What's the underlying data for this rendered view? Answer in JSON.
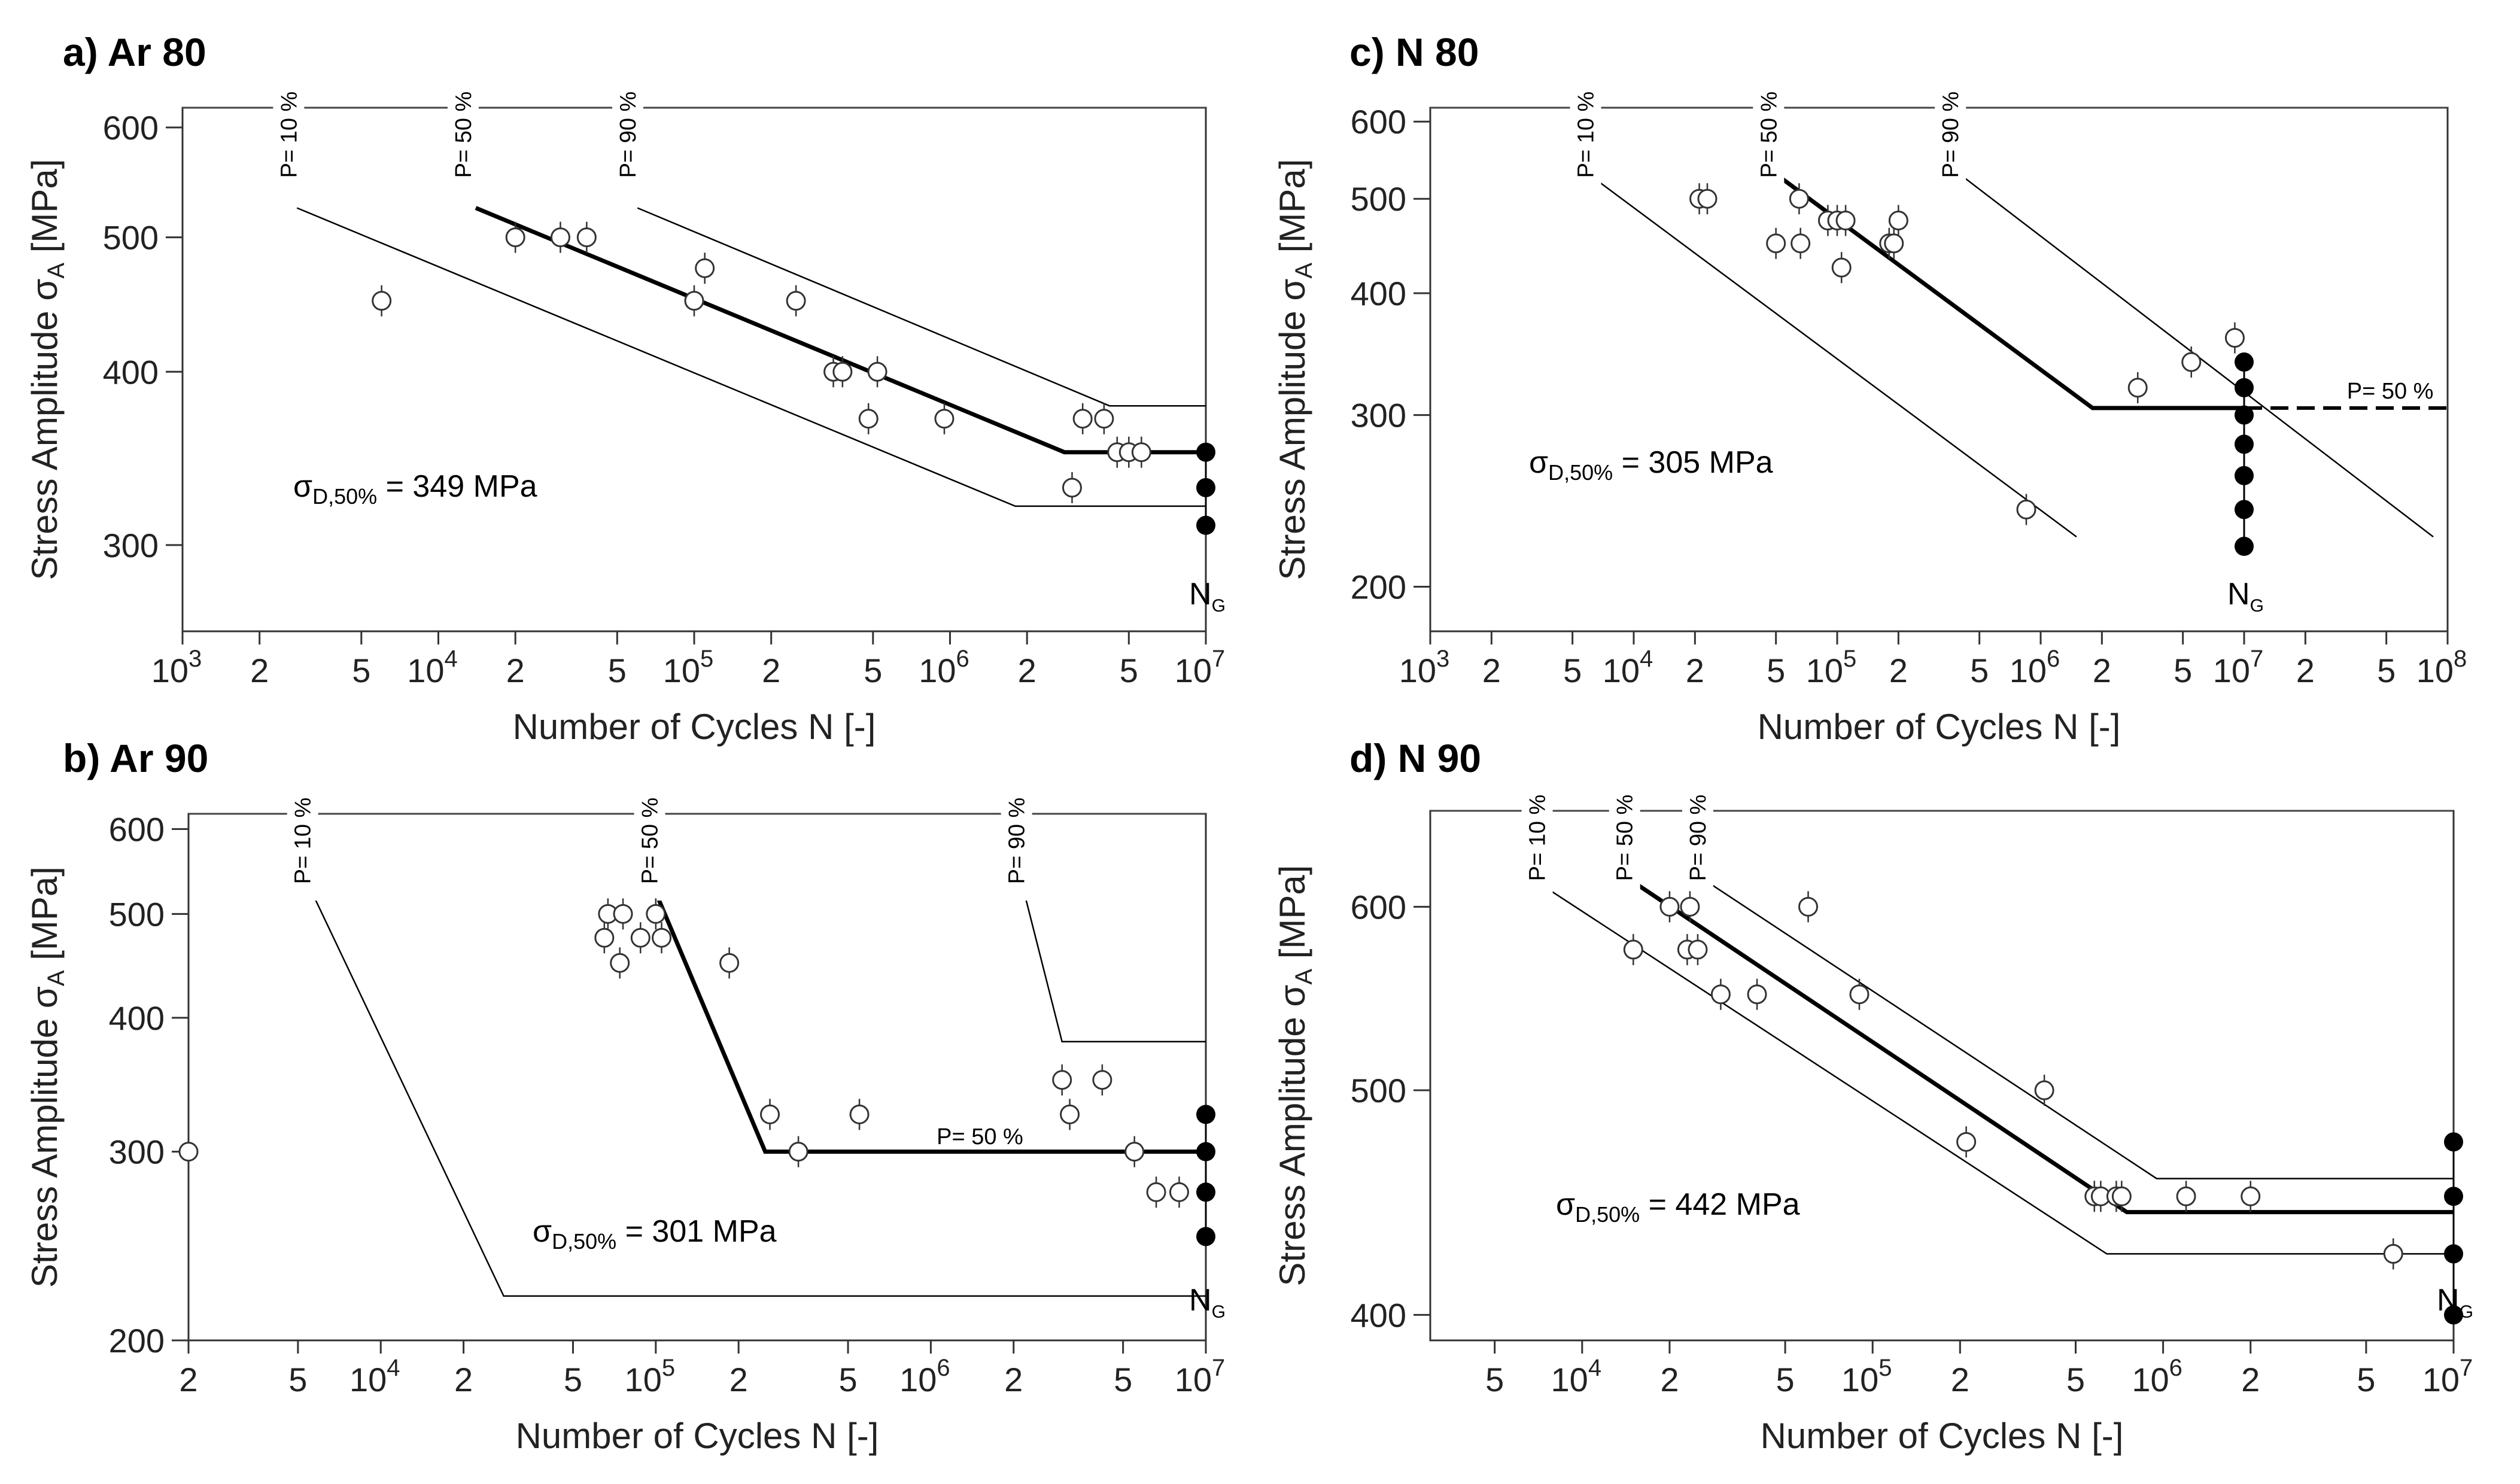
{
  "chart_data": [
    {
      "id": "a",
      "type": "scatter",
      "title": "a) Ar 80",
      "xlabel": "Number of Cycles N [-]",
      "ylabel_main": "Stress Amplitude σ",
      "ylabel_sub": "A",
      "ylabel_unit": " [MPa]",
      "xscale": "log",
      "yscale": "log",
      "xlim": [
        1000,
        10000000
      ],
      "ylim": [
        260,
        620
      ],
      "xticks": [
        {
          "v": 1000,
          "base": "10",
          "exp": "3"
        },
        {
          "v": 2000,
          "base": "2"
        },
        {
          "v": 5000,
          "base": "5"
        },
        {
          "v": 10000,
          "base": "10",
          "exp": "4"
        },
        {
          "v": 20000,
          "base": "2"
        },
        {
          "v": 50000,
          "base": "5"
        },
        {
          "v": 100000,
          "base": "10",
          "exp": "5"
        },
        {
          "v": 200000,
          "base": "2"
        },
        {
          "v": 500000,
          "base": "5"
        },
        {
          "v": 1000000,
          "base": "10",
          "exp": "6"
        },
        {
          "v": 2000000,
          "base": "2"
        },
        {
          "v": 5000000,
          "base": "5"
        },
        {
          "v": 10000000,
          "base": "10",
          "exp": "7"
        }
      ],
      "yticks": [
        {
          "v": 300,
          "t": "300"
        },
        {
          "v": 400,
          "t": "400"
        },
        {
          "v": 500,
          "t": "500"
        },
        {
          "v": 600,
          "t": "600"
        }
      ],
      "top_line_value": 620,
      "open_points": [
        [
          6000,
          450
        ],
        [
          20000,
          500
        ],
        [
          30000,
          500
        ],
        [
          38000,
          500
        ],
        [
          100000,
          450
        ],
        [
          110000,
          475
        ],
        [
          250000,
          450
        ],
        [
          350000,
          400
        ],
        [
          380000,
          400
        ],
        [
          480000,
          370
        ],
        [
          520000,
          400
        ],
        [
          950000,
          370
        ],
        [
          3000000,
          330
        ],
        [
          3300000,
          370
        ],
        [
          4000000,
          370
        ],
        [
          4500000,
          350
        ],
        [
          5000000,
          350
        ],
        [
          5600000,
          350
        ]
      ],
      "runouts": [
        [
          10000000,
          350
        ],
        [
          10000000,
          330
        ],
        [
          10000000,
          310
        ]
      ],
      "lines": [
        {
          "name": "P=10%",
          "style": "thin",
          "points": [
            [
              2800,
              525
            ],
            [
              1800000,
              320
            ],
            [
              10000000,
              320
            ]
          ]
        },
        {
          "name": "P=50%",
          "style": "bold",
          "points": [
            [
              14000,
              525
            ],
            [
              2800000,
              350
            ],
            [
              10000000,
              350
            ]
          ]
        },
        {
          "name": "P=90%",
          "style": "thin",
          "points": [
            [
              60000,
              525
            ],
            [
              4200000,
              378
            ],
            [
              10000000,
              378
            ]
          ]
        }
      ],
      "prob_labels": [
        {
          "text": "P= 10 %",
          "x": 2600
        },
        {
          "text": "P= 50 %",
          "x": 12500
        },
        {
          "text": "P= 90 %",
          "x": 55000
        }
      ],
      "endurance": {
        "prefix": "σ",
        "sub": "D,50%",
        "value": " = 349 MPa"
      },
      "ng_label": {
        "base": "N",
        "sub": "G"
      }
    },
    {
      "id": "b",
      "type": "scatter",
      "title": "b) Ar 90",
      "xlabel": "Number of Cycles N [-]",
      "ylabel_main": "Stress Amplitude σ",
      "ylabel_sub": "A",
      "ylabel_unit": " [MPa]",
      "xscale": "log",
      "yscale": "log",
      "xlim": [
        2000,
        10000000
      ],
      "ylim": [
        200,
        620
      ],
      "xticks": [
        {
          "v": 2000,
          "base": "2"
        },
        {
          "v": 5000,
          "base": "5"
        },
        {
          "v": 10000,
          "base": "10",
          "exp": "4"
        },
        {
          "v": 20000,
          "base": "2"
        },
        {
          "v": 50000,
          "base": "5"
        },
        {
          "v": 100000,
          "base": "10",
          "exp": "5"
        },
        {
          "v": 200000,
          "base": "2"
        },
        {
          "v": 500000,
          "base": "5"
        },
        {
          "v": 1000000,
          "base": "10",
          "exp": "6"
        },
        {
          "v": 2000000,
          "base": "2"
        },
        {
          "v": 5000000,
          "base": "5"
        },
        {
          "v": 10000000,
          "base": "10",
          "exp": "7"
        }
      ],
      "yticks": [
        {
          "v": 200,
          "t": "200"
        },
        {
          "v": 300,
          "t": "300"
        },
        {
          "v": 400,
          "t": "400"
        },
        {
          "v": 500,
          "t": "500"
        },
        {
          "v": 600,
          "t": "600"
        }
      ],
      "top_line_value": 620,
      "open_points": [
        [
          2000,
          300
        ],
        [
          65000,
          475
        ],
        [
          67000,
          500
        ],
        [
          74000,
          450
        ],
        [
          76000,
          500
        ],
        [
          88000,
          475
        ],
        [
          100000,
          500
        ],
        [
          105000,
          475
        ],
        [
          185000,
          450
        ],
        [
          260000,
          325
        ],
        [
          330000,
          300
        ],
        [
          550000,
          325
        ],
        [
          3000000,
          350
        ],
        [
          3200000,
          325
        ],
        [
          4200000,
          350
        ],
        [
          5500000,
          300
        ],
        [
          6600000,
          275
        ],
        [
          8000000,
          275
        ]
      ],
      "runouts": [
        [
          10000000,
          325
        ],
        [
          10000000,
          300
        ],
        [
          10000000,
          275
        ],
        [
          10000000,
          250
        ]
      ],
      "lines": [
        {
          "name": "P=10%",
          "style": "thin",
          "points": [
            [
              5500,
              530
            ],
            [
              28000,
              220
            ],
            [
              10000000,
              220
            ]
          ]
        },
        {
          "name": "P=50%",
          "style": "bold",
          "points": [
            [
              98000,
              530
            ],
            [
              250000,
              300
            ],
            [
              10000000,
              300
            ]
          ]
        },
        {
          "name": "P=90%",
          "style": "thin",
          "points": [
            [
              2200000,
              520
            ],
            [
              3000000,
              380
            ],
            [
              10000000,
              380
            ]
          ]
        }
      ],
      "prob_labels": [
        {
          "text": "P= 10 %",
          "x": 5200
        },
        {
          "text": "P= 50 %",
          "x": 95000
        },
        {
          "text": "P= 90 %",
          "x": 2050000
        }
      ],
      "inline_label": {
        "text": "P= 50 %",
        "x": 1050000,
        "y": 305
      },
      "endurance": {
        "prefix": "σ",
        "sub": "D,50%",
        "value": " = 301 MPa"
      },
      "ng_label": {
        "base": "N",
        "sub": "G"
      }
    },
    {
      "id": "c",
      "type": "scatter",
      "title": "c) N 80",
      "xlabel": "Number of Cycles N [-]",
      "ylabel_main": "Stress Amplitude σ",
      "ylabel_sub": "A",
      "ylabel_unit": " [MPa]",
      "xscale": "log",
      "yscale": "log",
      "xlim": [
        1000,
        100000000
      ],
      "ylim": [
        180,
        620
      ],
      "xticks": [
        {
          "v": 1000,
          "base": "10",
          "exp": "3"
        },
        {
          "v": 2000,
          "base": "2"
        },
        {
          "v": 5000,
          "base": "5"
        },
        {
          "v": 10000,
          "base": "10",
          "exp": "4"
        },
        {
          "v": 20000,
          "base": "2"
        },
        {
          "v": 50000,
          "base": "5"
        },
        {
          "v": 100000,
          "base": "10",
          "exp": "5"
        },
        {
          "v": 200000,
          "base": "2"
        },
        {
          "v": 500000,
          "base": "5"
        },
        {
          "v": 1000000,
          "base": "10",
          "exp": "6"
        },
        {
          "v": 2000000,
          "base": "2"
        },
        {
          "v": 5000000,
          "base": "5"
        },
        {
          "v": 10000000,
          "base": "10",
          "exp": "7"
        },
        {
          "v": 20000000,
          "base": "2"
        },
        {
          "v": 50000000,
          "base": "5"
        },
        {
          "v": 100000000,
          "base": "10",
          "exp": "8"
        }
      ],
      "yticks": [
        {
          "v": 200,
          "t": "200"
        },
        {
          "v": 300,
          "t": "300"
        },
        {
          "v": 400,
          "t": "400"
        },
        {
          "v": 500,
          "t": "500"
        },
        {
          "v": 600,
          "t": "600"
        }
      ],
      "top_line_value": 620,
      "open_points": [
        [
          21000,
          500
        ],
        [
          23000,
          500
        ],
        [
          50000,
          450
        ],
        [
          65000,
          500
        ],
        [
          66000,
          450
        ],
        [
          90000,
          475
        ],
        [
          100000,
          475
        ],
        [
          105000,
          425
        ],
        [
          110000,
          475
        ],
        [
          180000,
          450
        ],
        [
          190000,
          450
        ],
        [
          200000,
          475
        ],
        [
          850000,
          240
        ],
        [
          3000000,
          320
        ],
        [
          5500000,
          340
        ],
        [
          9000000,
          360
        ]
      ],
      "runouts": [
        [
          10000000,
          340
        ],
        [
          10000000,
          320
        ],
        [
          10000000,
          300
        ],
        [
          10000000,
          280
        ],
        [
          10000000,
          260
        ],
        [
          10000000,
          240
        ],
        [
          10000000,
          220
        ]
      ],
      "lines": [
        {
          "name": "P=10%",
          "style": "thin",
          "points": [
            [
              6000,
              530
            ],
            [
              1500000,
              225
            ]
          ]
        },
        {
          "name": "P=50%",
          "style": "bold",
          "points": [
            [
              50000,
              530
            ],
            [
              1800000,
              305
            ],
            [
              10000000,
              305
            ]
          ]
        },
        {
          "name": "P=50% extension",
          "style": "dashed",
          "points": [
            [
              10000000,
              305
            ],
            [
              100000000,
              305
            ]
          ]
        },
        {
          "name": "P=90%",
          "style": "thin",
          "points": [
            [
              400000,
              530
            ],
            [
              85000000,
              225
            ]
          ]
        }
      ],
      "prob_labels": [
        {
          "text": "P= 10 %",
          "x": 5800
        },
        {
          "text": "P= 50 %",
          "x": 46000
        },
        {
          "text": "P= 90 %",
          "x": 360000
        }
      ],
      "inline_label": {
        "text": "P= 50 %",
        "x": 32000000,
        "y": 312
      },
      "endurance": {
        "prefix": "σ",
        "sub": "D,50%",
        "value": " = 305 MPa"
      },
      "ng_label": {
        "base": "N",
        "sub": "G"
      }
    },
    {
      "id": "d",
      "type": "scatter",
      "title": "d) N 90",
      "xlabel": "Number of Cycles N [-]",
      "ylabel_main": "Stress Amplitude σ",
      "ylabel_sub": "A",
      "ylabel_unit": " [MPa]",
      "xscale": "log",
      "yscale": "log",
      "xlim": [
        3000,
        10000000
      ],
      "ylim": [
        390,
        660
      ],
      "xticks": [
        {
          "v": 5000,
          "base": "5"
        },
        {
          "v": 10000,
          "base": "10",
          "exp": "4"
        },
        {
          "v": 20000,
          "base": "2"
        },
        {
          "v": 50000,
          "base": "5"
        },
        {
          "v": 100000,
          "base": "10",
          "exp": "5"
        },
        {
          "v": 200000,
          "base": "2"
        },
        {
          "v": 500000,
          "base": "5"
        },
        {
          "v": 1000000,
          "base": "10",
          "exp": "6"
        },
        {
          "v": 2000000,
          "base": "2"
        },
        {
          "v": 5000000,
          "base": "5"
        },
        {
          "v": 10000000,
          "base": "10",
          "exp": "7"
        }
      ],
      "yticks": [
        {
          "v": 400,
          "t": "400"
        },
        {
          "v": 500,
          "t": "500"
        },
        {
          "v": 600,
          "t": "600"
        }
      ],
      "top_line_value": 660,
      "open_points": [
        [
          15000,
          575
        ],
        [
          20000,
          600
        ],
        [
          23000,
          575
        ],
        [
          23500,
          600
        ],
        [
          25000,
          575
        ],
        [
          30000,
          550
        ],
        [
          40000,
          550
        ],
        [
          60000,
          600
        ],
        [
          90000,
          550
        ],
        [
          210000,
          475
        ],
        [
          390000,
          500
        ],
        [
          580000,
          450
        ],
        [
          610000,
          450
        ],
        [
          690000,
          450
        ],
        [
          720000,
          450
        ],
        [
          1200000,
          450
        ],
        [
          2000000,
          450
        ],
        [
          6200000,
          425
        ]
      ],
      "runouts": [
        [
          10000000,
          475
        ],
        [
          10000000,
          450
        ],
        [
          10000000,
          425
        ],
        [
          10000000,
          400
        ]
      ],
      "lines": [
        {
          "name": "P=10%",
          "style": "thin",
          "points": [
            [
              7000,
              615
            ],
            [
              640000,
              425
            ],
            [
              10000000,
              425
            ]
          ]
        },
        {
          "name": "P=50%",
          "style": "bold",
          "points": [
            [
              15000,
              615
            ],
            [
              750000,
              443
            ],
            [
              10000000,
              443
            ]
          ]
        },
        {
          "name": "P=90%",
          "style": "thin",
          "points": [
            [
              27000,
              615
            ],
            [
              950000,
              458
            ],
            [
              10000000,
              458
            ]
          ]
        }
      ],
      "prob_labels": [
        {
          "text": "P= 10 %",
          "x": 7000
        },
        {
          "text": "P= 50 %",
          "x": 14000
        },
        {
          "text": "P= 90 %",
          "x": 25000
        }
      ],
      "endurance": {
        "prefix": "σ",
        "sub": "D,50%",
        "value": " = 442 MPa"
      },
      "ng_label": {
        "base": "N",
        "sub": "G"
      }
    }
  ]
}
